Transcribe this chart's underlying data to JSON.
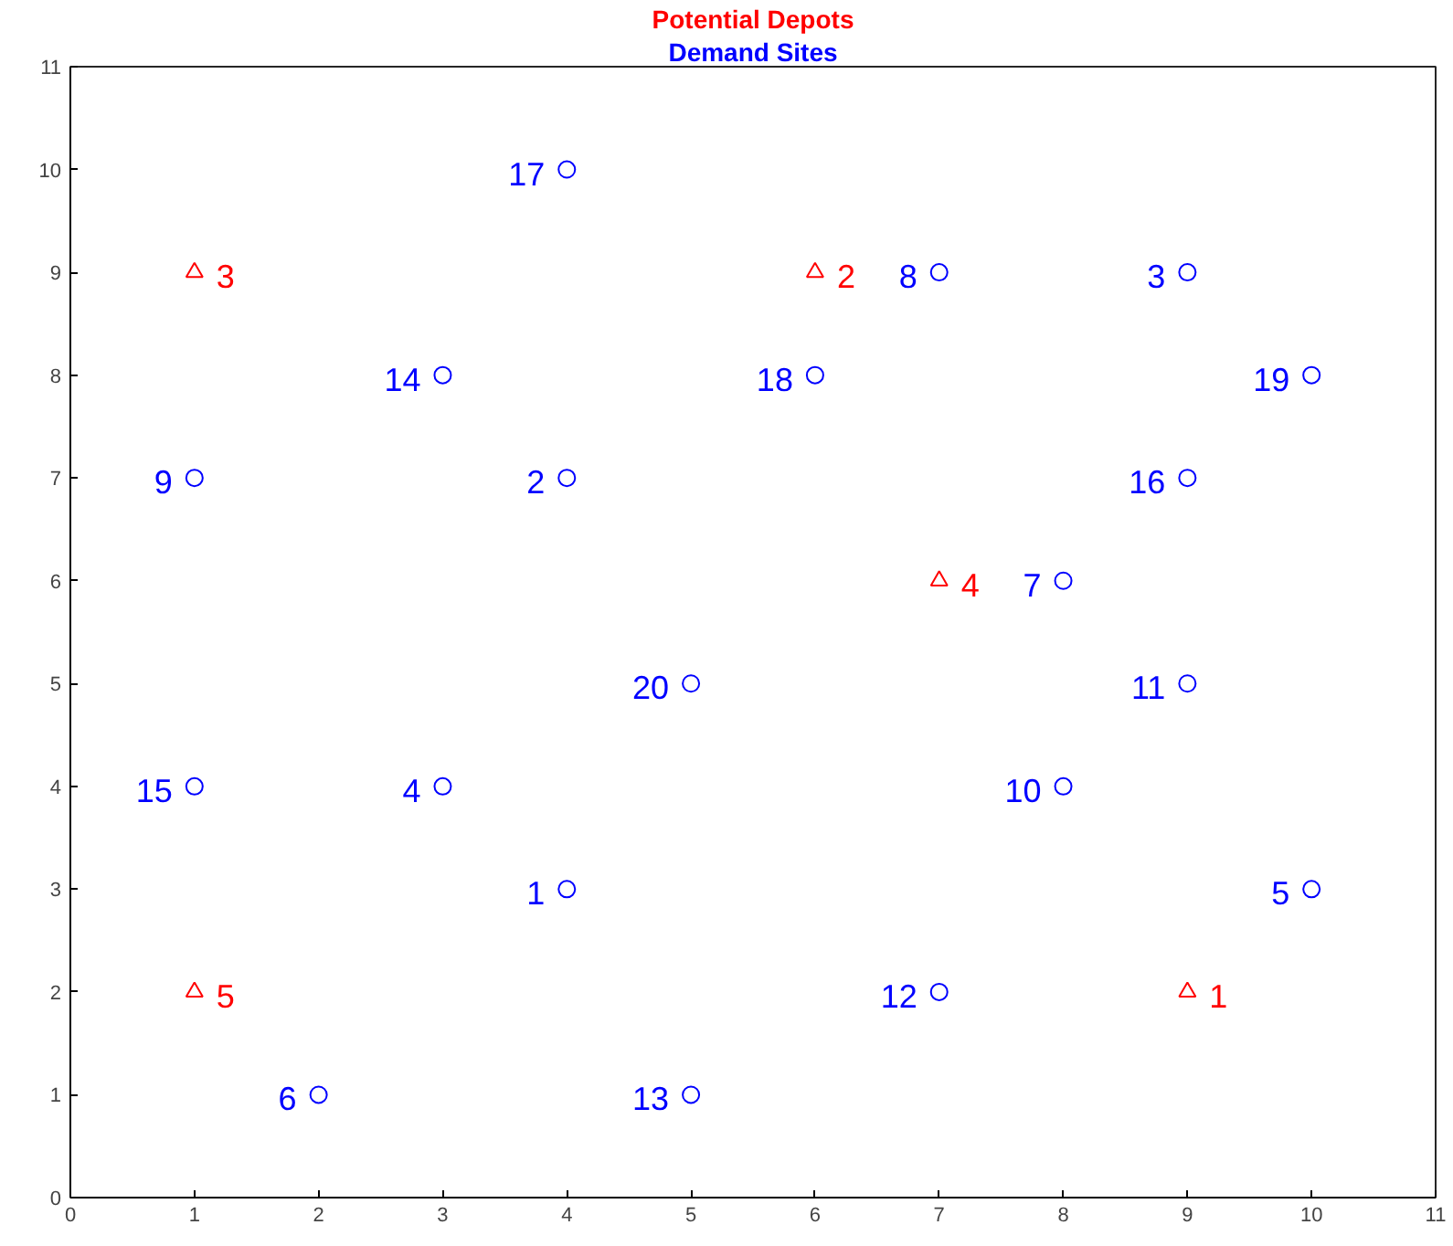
{
  "chart_data": {
    "type": "scatter",
    "xlim": [
      0,
      11
    ],
    "ylim": [
      0,
      11
    ],
    "xticks": [
      0,
      1,
      2,
      3,
      4,
      5,
      6,
      7,
      8,
      9,
      10,
      11
    ],
    "yticks": [
      0,
      1,
      2,
      3,
      4,
      5,
      6,
      7,
      8,
      9,
      10,
      11
    ],
    "grid": false,
    "series": [
      {
        "name": "Potential Depots",
        "color": "#ff0000",
        "marker": "triangle",
        "x": [
          9,
          6,
          1,
          7,
          1
        ],
        "values": [
          2,
          9,
          9,
          6,
          2
        ]
      },
      {
        "name": "Demand Sites",
        "color": "#0000ff",
        "marker": "circle",
        "x": [
          4,
          4,
          9,
          3,
          10,
          2,
          8,
          7,
          1,
          8,
          9,
          7,
          5,
          3,
          1,
          9,
          4,
          6,
          10,
          5
        ],
        "values": [
          3,
          7,
          9,
          4,
          3,
          1,
          6,
          9,
          7,
          4,
          5,
          2,
          1,
          8,
          4,
          7,
          10,
          8,
          8,
          5
        ]
      }
    ],
    "annotations": [
      {
        "text": "1",
        "x": 9,
        "y": 2
      },
      {
        "text": "2",
        "x": 6,
        "y": 9
      },
      {
        "text": "3",
        "x": 1,
        "y": 9
      },
      {
        "text": "4",
        "x": 7,
        "y": 6
      },
      {
        "text": "5",
        "x": 1,
        "y": 2
      },
      {
        "text": "1",
        "x": 4,
        "y": 3
      },
      {
        "text": "2",
        "x": 4,
        "y": 7
      },
      {
        "text": "3",
        "x": 9,
        "y": 9
      },
      {
        "text": "4",
        "x": 3,
        "y": 4
      },
      {
        "text": "5",
        "x": 10,
        "y": 3
      },
      {
        "text": "6",
        "x": 2,
        "y": 1
      },
      {
        "text": "7",
        "x": 8,
        "y": 6
      },
      {
        "text": "8",
        "x": 7,
        "y": 9
      },
      {
        "text": "9",
        "x": 1,
        "y": 7
      },
      {
        "text": "10",
        "x": 8,
        "y": 4
      },
      {
        "text": "11",
        "x": 9,
        "y": 5
      },
      {
        "text": "12",
        "x": 7,
        "y": 2
      },
      {
        "text": "13",
        "x": 5,
        "y": 1
      },
      {
        "text": "14",
        "x": 3,
        "y": 8
      },
      {
        "text": "15",
        "x": 1,
        "y": 4
      },
      {
        "text": "16",
        "x": 9,
        "y": 7
      },
      {
        "text": "17",
        "x": 4,
        "y": 10
      },
      {
        "text": "18",
        "x": 6,
        "y": 8
      },
      {
        "text": "19",
        "x": 10,
        "y": 8
      },
      {
        "text": "20",
        "x": 5,
        "y": 5
      }
    ]
  }
}
